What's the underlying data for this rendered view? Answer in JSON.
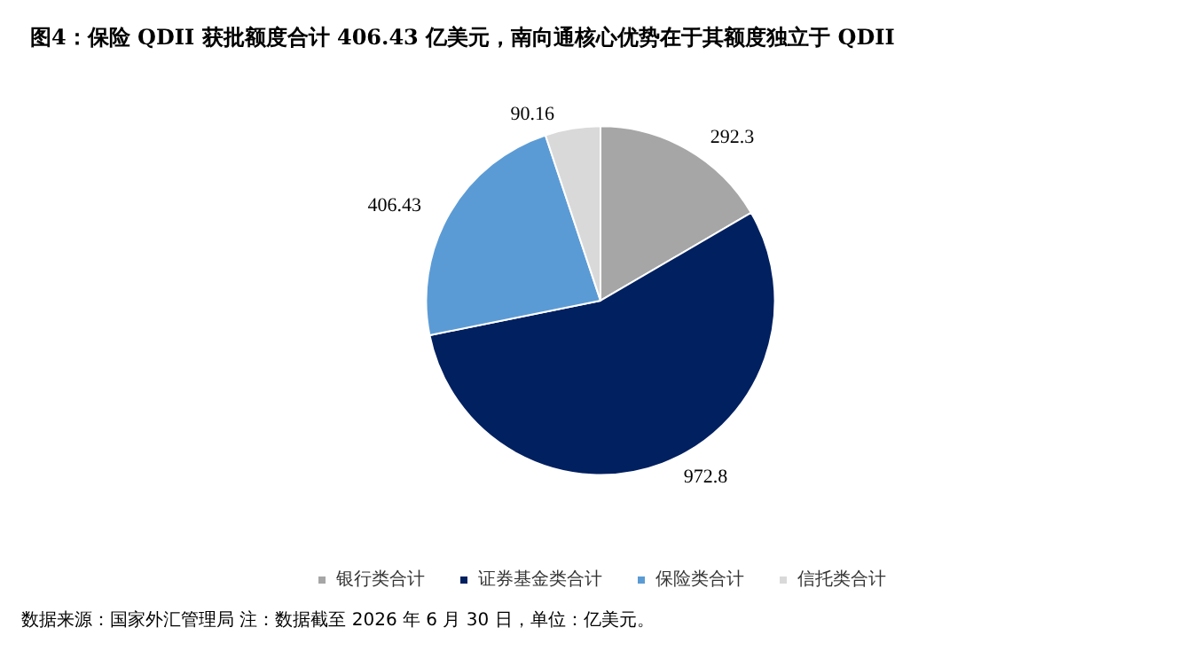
{
  "chart_data": {
    "type": "pie",
    "title": "图4：保险 QDII 获批额度合计 406.43 亿美元，南向通核心优势在于其额度独立于 QDII",
    "categories": [
      "银行类合计",
      "证券基金类合计",
      "保险类合计",
      "信托类合计"
    ],
    "values": [
      292.3,
      972.8,
      406.43,
      90.16
    ],
    "colors": [
      "#a6a6a6",
      "#002060",
      "#5b9bd5",
      "#d9d9d9"
    ],
    "data_labels": true,
    "legend": "bottom",
    "annotations": [
      "数据来源：国家外汇管理局 注：数据截至 2026 年 6 月 30 日，单位：亿美元。"
    ]
  }
}
